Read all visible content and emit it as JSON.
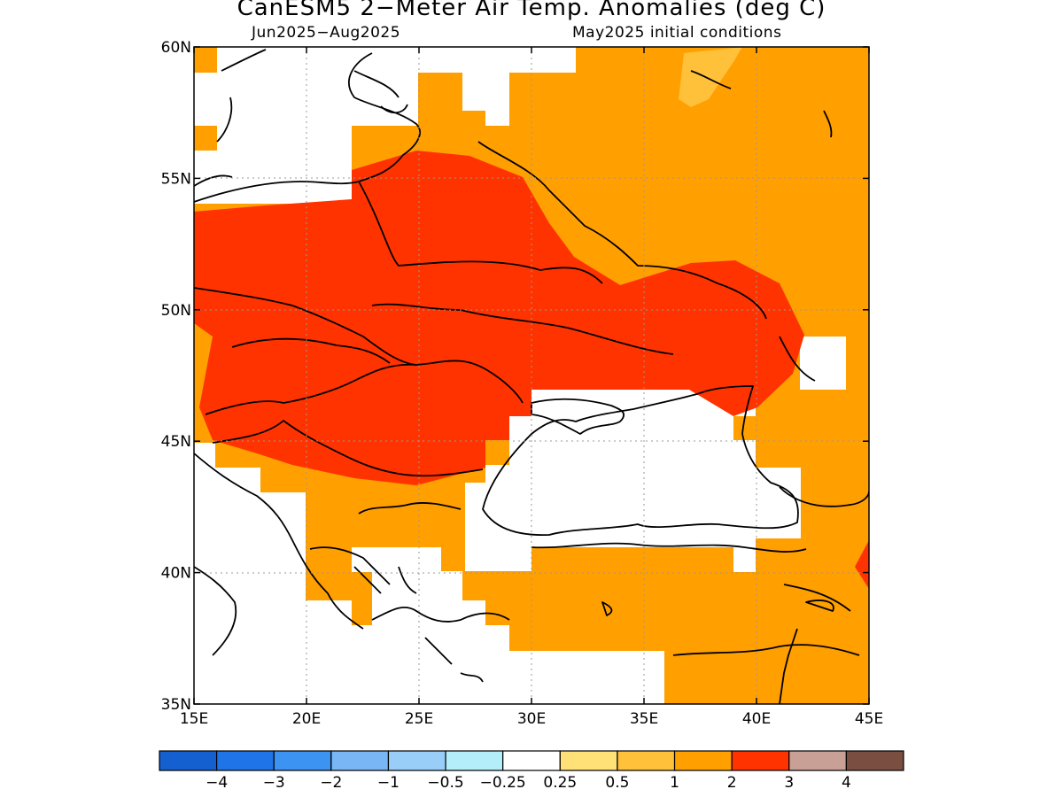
{
  "title": "CanESM5 2−Meter Air Temp. Anomalies (deg C)",
  "subtitle_left": "Jun2025−Aug2025",
  "subtitle_right": "May2025 initial conditions",
  "map": {
    "lon_range": [
      15,
      45
    ],
    "lat_range": [
      35,
      60
    ],
    "lon_ticks": [
      {
        "value": 15,
        "label": "15E"
      },
      {
        "value": 20,
        "label": "20E"
      },
      {
        "value": 25,
        "label": "25E"
      },
      {
        "value": 30,
        "label": "30E"
      },
      {
        "value": 35,
        "label": "35E"
      },
      {
        "value": 40,
        "label": "40E"
      },
      {
        "value": 45,
        "label": "45E"
      }
    ],
    "lat_ticks": [
      {
        "value": 60,
        "label": "60N"
      },
      {
        "value": 55,
        "label": "55N"
      },
      {
        "value": 50,
        "label": "50N"
      },
      {
        "value": 45,
        "label": "45N"
      },
      {
        "value": 40,
        "label": "40N"
      },
      {
        "value": 35,
        "label": "35N"
      }
    ],
    "gridlines": "dotted",
    "dominant_anomaly_bins": [
      {
        "range": "1 to 2",
        "color": "#ff9f00",
        "area": "most of the domain"
      },
      {
        "range": "2 to 3",
        "color": "#ff3300",
        "area": "central/eastern Europe, Ukraine, southern Russia"
      },
      {
        "range": "0.5 to 1",
        "color": "#ffc03a",
        "area": "small patch near 36-38E, 59-60N"
      }
    ]
  },
  "colorbar": {
    "colors": [
      "#1560d0",
      "#1f74e8",
      "#3d93f2",
      "#78b6f5",
      "#98cef8",
      "#b4eefa",
      "#ffffff",
      "#ffe177",
      "#ffc03a",
      "#ff9f00",
      "#ff3300",
      "#c8a096",
      "#7a4f42"
    ],
    "labels": [
      "−4",
      "−3",
      "−2",
      "−1",
      "−0.5",
      "−0.25",
      "0.25",
      "0.5",
      "1",
      "2",
      "3",
      "4"
    ]
  }
}
